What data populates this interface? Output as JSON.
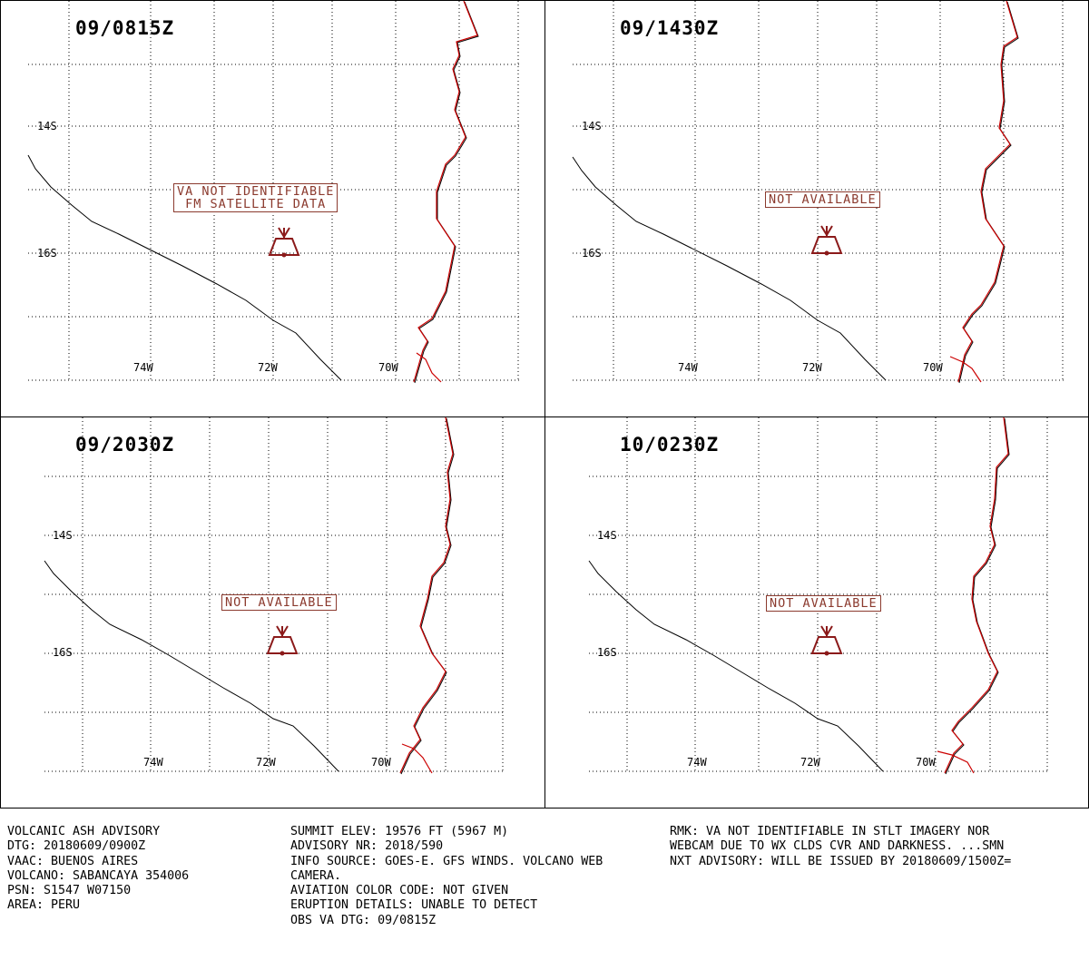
{
  "panels": [
    {
      "time": "09/0815Z",
      "message": [
        "VA NOT IDENTIFIABLE",
        "FM SATELLITE DATA"
      ]
    },
    {
      "time": "09/1430Z",
      "message": [
        "NOT AVAILABLE"
      ]
    },
    {
      "time": "09/2030Z",
      "message": [
        "NOT AVAILABLE"
      ]
    },
    {
      "time": "10/0230Z",
      "message": [
        "NOT AVAILABLE"
      ]
    }
  ],
  "lat_labels": [
    "14S",
    "16S"
  ],
  "lon_labels": [
    "74W",
    "72W",
    "70W"
  ],
  "advisory": {
    "col1": [
      "VOLCANIC ASH ADVISORY",
      "DTG: 20180609/0900Z",
      "VAAC: BUENOS AIRES",
      "VOLCANO: SABANCAYA 354006",
      "PSN: S1547 W07150",
      "AREA: PERU"
    ],
    "col2": [
      "SUMMIT ELEV: 19576 FT (5967 M)",
      "ADVISORY NR: 2018/590",
      "INFO SOURCE: GOES-E. GFS WINDS. VOLCANO WEB",
      "CAMERA.",
      "AVIATION COLOR CODE: NOT GIVEN",
      "ERUPTION DETAILS: UNABLE TO DETECT",
      "OBS VA DTG: 09/0815Z"
    ],
    "col3": [
      "RMK: VA NOT IDENTIFIABLE IN STLT IMAGERY NOR",
      "WEBCAM DUE TO WX CLDS CVR AND DARKNESS. ...SMN",
      "NXT ADVISORY: WILL BE ISSUED BY 20180609/1500Z="
    ]
  },
  "colors": {
    "border": "#cc0000",
    "volcano": "#8b1a1a",
    "coast": "#000000",
    "grid": "#000000"
  }
}
